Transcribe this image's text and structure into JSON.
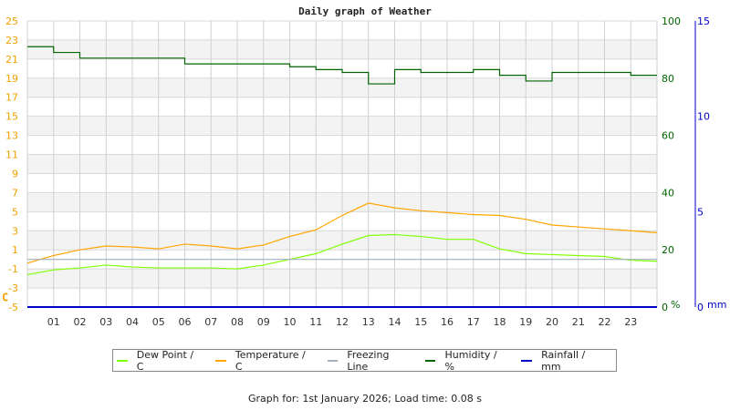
{
  "header": {
    "title": "Daily graph of Weather"
  },
  "footer": {
    "text": "Graph for: 1st January 2026; Load time: 0.08 s"
  },
  "legend": [
    {
      "label": "Dew Point / C",
      "color": "#7fff00"
    },
    {
      "label": "Temperature / C",
      "color": "#ffa500"
    },
    {
      "label": "Freezing Line",
      "color": "#a0b0c0"
    },
    {
      "label": "Humidity / %",
      "color": "#006400"
    },
    {
      "label": "Rainfall / mm",
      "color": "#0000cc"
    }
  ],
  "axes": {
    "left": {
      "unit": "C",
      "ticks": [
        "25",
        "23",
        "21",
        "19",
        "17",
        "15",
        "13",
        "11",
        "9",
        "7",
        "5",
        "3",
        "1",
        "-1",
        "-3",
        "-5"
      ],
      "color": "#f0a000"
    },
    "right1": {
      "unit": "%",
      "ticks": [
        "100",
        "80",
        "60",
        "40",
        "20",
        "0"
      ],
      "color": "#006400"
    },
    "right2": {
      "unit": "mm",
      "ticks": [
        "15",
        "10",
        "5",
        "0"
      ],
      "color": "#0000cc"
    },
    "x": {
      "ticks": [
        "01",
        "02",
        "03",
        "04",
        "05",
        "06",
        "07",
        "08",
        "09",
        "10",
        "11",
        "12",
        "13",
        "14",
        "15",
        "16",
        "17",
        "18",
        "19",
        "20",
        "21",
        "22",
        "23"
      ]
    }
  },
  "chart_data": {
    "type": "line",
    "title": "Daily graph of Weather",
    "xlabel": "Hour",
    "ylabel": "C",
    "ylim": [
      -5,
      25
    ],
    "y2label": "%",
    "y2lim": [
      0,
      100
    ],
    "y3label": "mm",
    "y3lim": [
      0,
      15
    ],
    "x": [
      0,
      1,
      2,
      3,
      4,
      5,
      6,
      7,
      8,
      9,
      10,
      11,
      12,
      13,
      14,
      15,
      16,
      17,
      18,
      19,
      20,
      21,
      22,
      23,
      24
    ],
    "series": [
      {
        "name": "Dew Point / C",
        "axis": "left",
        "values": [
          -1.6,
          -1.1,
          -0.9,
          -0.6,
          -0.8,
          -0.9,
          -0.9,
          -0.9,
          -1.0,
          -0.6,
          0.0,
          0.6,
          1.6,
          2.5,
          2.6,
          2.4,
          2.1,
          2.1,
          1.1,
          0.6,
          0.5,
          0.4,
          0.3,
          -0.1,
          -0.2
        ]
      },
      {
        "name": "Temperature / C",
        "axis": "left",
        "values": [
          -0.4,
          0.4,
          1.0,
          1.4,
          1.3,
          1.1,
          1.6,
          1.4,
          1.1,
          1.5,
          2.4,
          3.1,
          4.6,
          5.9,
          5.4,
          5.1,
          4.9,
          4.7,
          4.6,
          4.2,
          3.6,
          3.4,
          3.2,
          3.0,
          2.8
        ]
      },
      {
        "name": "Freezing Line",
        "axis": "left",
        "values": [
          0,
          0,
          0,
          0,
          0,
          0,
          0,
          0,
          0,
          0,
          0,
          0,
          0,
          0,
          0,
          0,
          0,
          0,
          0,
          0,
          0,
          0,
          0,
          0,
          0
        ]
      },
      {
        "name": "Humidity / %",
        "axis": "right1",
        "values": [
          91,
          89,
          87,
          87,
          87,
          87,
          85,
          85,
          85,
          85,
          84,
          83,
          82,
          78,
          83,
          82,
          82,
          83,
          81,
          79,
          82,
          82,
          82,
          81,
          81
        ]
      },
      {
        "name": "Rainfall / mm",
        "axis": "right2",
        "values": [
          0,
          0,
          0,
          0,
          0,
          0,
          0,
          0,
          0,
          0,
          0,
          0,
          0,
          0,
          0,
          0,
          0,
          0,
          0,
          0,
          0,
          0,
          0,
          0,
          0
        ]
      }
    ],
    "grid": true,
    "legend_position": "bottom"
  }
}
